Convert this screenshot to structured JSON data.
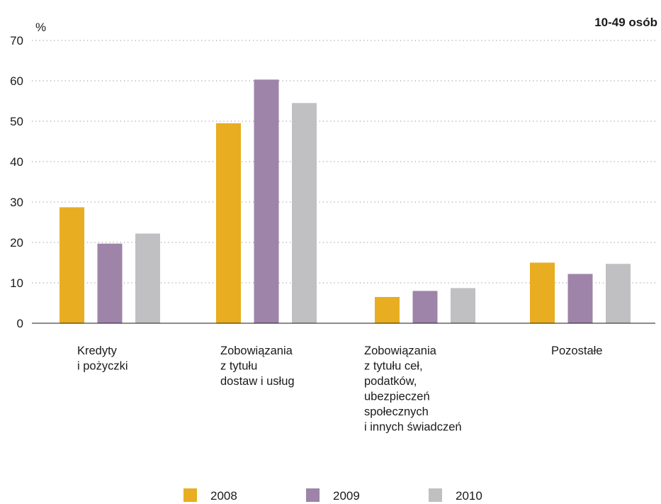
{
  "chart_data": {
    "type": "bar",
    "title": "",
    "subtitle": "10-49 osób",
    "ylabel": "%",
    "xlabel": "",
    "ylim": [
      0,
      70
    ],
    "yticks": [
      0,
      10,
      20,
      30,
      40,
      50,
      60,
      70
    ],
    "grid": true,
    "legend_position": "bottom",
    "categories": [
      [
        "Kredyty",
        "i pożyczki"
      ],
      [
        "Zobowiązania",
        "z tytułu",
        "dostaw i usług"
      ],
      [
        "Zobowiązania",
        "z tytułu ceł,",
        "podatków,",
        "ubezpieczeń",
        "społecznych",
        "i innych świadczeń"
      ],
      [
        "Pozostałe"
      ]
    ],
    "series": [
      {
        "name": "2008",
        "color": "#E8AD21",
        "values": [
          28.7,
          49.5,
          6.5,
          15.0
        ]
      },
      {
        "name": "2009",
        "color": "#9E84A8",
        "values": [
          19.7,
          60.3,
          8.0,
          12.2
        ]
      },
      {
        "name": "2010",
        "color": "#C0C0C2",
        "values": [
          22.2,
          54.5,
          8.7,
          14.7
        ]
      }
    ]
  }
}
